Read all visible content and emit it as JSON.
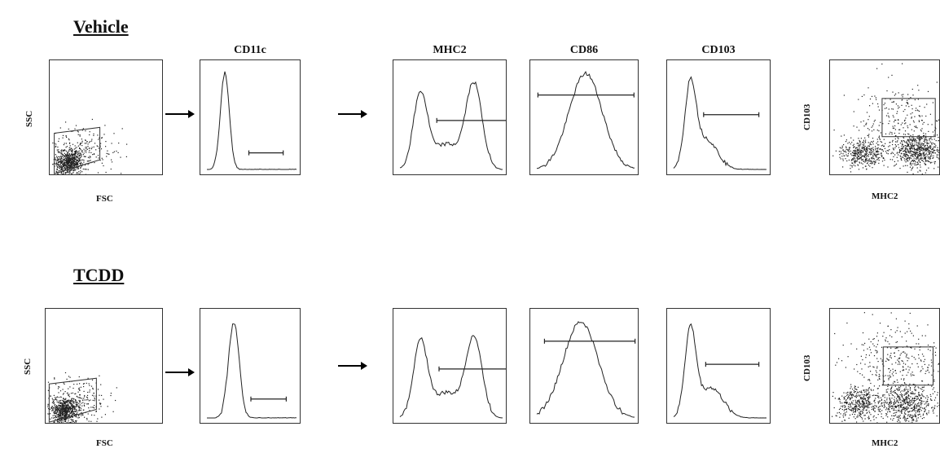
{
  "rows": [
    {
      "title": "Vehicle"
    },
    {
      "title": "TCDD"
    }
  ],
  "panel_titles": {
    "cd11c": "CD11c",
    "mhc2": "MHC2",
    "cd86": "CD86",
    "cd103": "CD103"
  },
  "axis_labels": {
    "ssc": "SSC",
    "fsc": "FSC",
    "cd103": "CD103",
    "mhc2": "MHC2"
  },
  "chart_data": [
    {
      "type": "scatter",
      "row": "Vehicle",
      "xlabel": "FSC",
      "ylabel": "SSC",
      "gate": "lower-left population"
    },
    {
      "type": "line",
      "row": "Vehicle",
      "title": "CD11c",
      "peak": "near 0",
      "gate": "marker bar (positive)"
    },
    {
      "type": "line",
      "row": "Vehicle",
      "title": "MHC2",
      "peaks": 2,
      "gate": "marker bar (positive)"
    },
    {
      "type": "line",
      "row": "Vehicle",
      "title": "CD86",
      "peaks": 1,
      "gate": "marker bar"
    },
    {
      "type": "line",
      "row": "Vehicle",
      "title": "CD103",
      "peaks": 1,
      "gate": "marker bar"
    },
    {
      "type": "scatter",
      "row": "Vehicle",
      "xlabel": "MHC2",
      "ylabel": "CD103",
      "gate": "upper-right box"
    },
    {
      "type": "scatter",
      "row": "TCDD",
      "xlabel": "FSC",
      "ylabel": "SSC",
      "gate": "lower-left population"
    },
    {
      "type": "line",
      "row": "TCDD",
      "title": "CD11c",
      "peak": "near 0",
      "gate": "marker bar (positive)"
    },
    {
      "type": "line",
      "row": "TCDD",
      "title": "MHC2",
      "peaks": 2,
      "gate": "marker bar (positive)"
    },
    {
      "type": "line",
      "row": "TCDD",
      "title": "CD86",
      "peaks": 1,
      "gate": "marker bar"
    },
    {
      "type": "line",
      "row": "TCDD",
      "title": "CD103",
      "peaks": 1,
      "gate": "marker bar"
    },
    {
      "type": "scatter",
      "row": "TCDD",
      "xlabel": "MHC2",
      "ylabel": "CD103",
      "gate": "upper-right box"
    }
  ]
}
